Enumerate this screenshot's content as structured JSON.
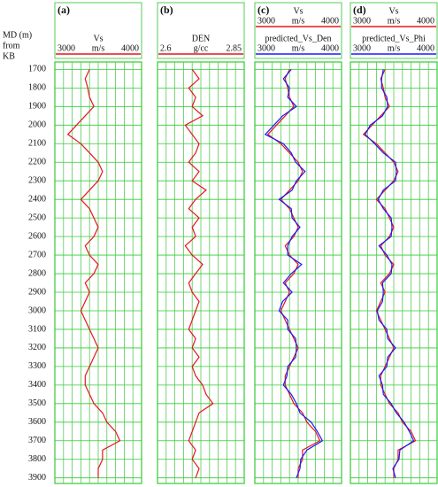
{
  "chart_data": {
    "type": "well-log",
    "ylabel": [
      "MD (m)",
      "from",
      "KB"
    ],
    "ylim": [
      1660,
      3930
    ],
    "yticks": [
      1700,
      1800,
      1900,
      2000,
      2100,
      2200,
      2300,
      2400,
      2500,
      2600,
      2700,
      2800,
      2900,
      3000,
      3100,
      3200,
      3300,
      3400,
      3500,
      3600,
      3700,
      3800,
      3900
    ],
    "grid": true,
    "y": [
      1700,
      1750,
      1800,
      1850,
      1900,
      1950,
      2000,
      2050,
      2100,
      2150,
      2200,
      2250,
      2300,
      2350,
      2400,
      2450,
      2500,
      2550,
      2600,
      2650,
      2700,
      2750,
      2800,
      2850,
      2900,
      2950,
      3000,
      3050,
      3100,
      3150,
      3200,
      3250,
      3300,
      3350,
      3400,
      3450,
      3500,
      3550,
      3600,
      3650,
      3700,
      3750,
      3800,
      3850,
      3900
    ],
    "tracks": [
      {
        "label": "(a)",
        "xgrid": [
          3100,
          3200,
          3300,
          3400,
          3500,
          3600,
          3700,
          3800,
          3900
        ],
        "curves": [
          {
            "name": "Vs",
            "unit": "m/s",
            "color": "#e8141e",
            "xlim": [
              3000,
              4000
            ],
            "xticks": [
              3000,
              4000
            ],
            "values": [
              3400,
              3350,
              3380,
              3400,
              3450,
              3350,
              3250,
              3150,
              3300,
              3400,
              3500,
              3550,
              3500,
              3400,
              3300,
              3400,
              3450,
              3500,
              3450,
              3350,
              3400,
              3500,
              3450,
              3350,
              3400,
              3350,
              3300,
              3350,
              3400,
              3450,
              3500,
              3450,
              3400,
              3350,
              3350,
              3400,
              3450,
              3550,
              3600,
              3700,
              3750,
              3550,
              3550,
              3500,
              3500
            ]
          }
        ]
      },
      {
        "label": "(b)",
        "xgrid": [
          2.625,
          2.65,
          2.675,
          2.7,
          2.725,
          2.75,
          2.775,
          2.8,
          2.825
        ],
        "curves": [
          {
            "name": "DEN",
            "unit": "g/cc",
            "color": "#e8141e",
            "xlim": [
              2.6,
              2.85
            ],
            "xticks": [
              2.6,
              2.85
            ],
            "values": [
              2.7,
              2.72,
              2.69,
              2.71,
              2.7,
              2.73,
              2.68,
              2.7,
              2.72,
              2.71,
              2.69,
              2.72,
              2.7,
              2.74,
              2.71,
              2.69,
              2.72,
              2.7,
              2.71,
              2.68,
              2.7,
              2.73,
              2.71,
              2.69,
              2.7,
              2.72,
              2.71,
              2.7,
              2.69,
              2.71,
              2.7,
              2.72,
              2.7,
              2.71,
              2.73,
              2.74,
              2.76,
              2.72,
              2.71,
              2.7,
              2.69,
              2.71,
              2.7,
              2.72,
              2.71
            ]
          }
        ]
      },
      {
        "label": "(c)",
        "xgrid": [
          3100,
          3200,
          3300,
          3400,
          3500,
          3600,
          3700,
          3800,
          3900
        ],
        "curves": [
          {
            "name": "Vs",
            "unit": "m/s",
            "color": "#e8141e",
            "xlim": [
              3000,
              4000
            ],
            "xticks": [
              3000,
              4000
            ],
            "values": [
              3400,
              3350,
              3380,
              3400,
              3450,
              3350,
              3250,
              3150,
              3300,
              3400,
              3500,
              3550,
              3500,
              3400,
              3300,
              3400,
              3450,
              3500,
              3450,
              3350,
              3400,
              3500,
              3450,
              3350,
              3400,
              3350,
              3300,
              3350,
              3400,
              3450,
              3500,
              3450,
              3400,
              3350,
              3350,
              3400,
              3450,
              3550,
              3600,
              3700,
              3750,
              3550,
              3550,
              3500,
              3500
            ]
          },
          {
            "name": "predicted_Vs_Den",
            "unit": "m/s",
            "color": "#1a1aff",
            "xlim": [
              3000,
              4000
            ],
            "xticks": [
              3000,
              4000
            ],
            "values": [
              3420,
              3330,
              3400,
              3380,
              3480,
              3320,
              3220,
              3120,
              3330,
              3420,
              3470,
              3580,
              3480,
              3430,
              3280,
              3420,
              3430,
              3520,
              3430,
              3380,
              3380,
              3540,
              3420,
              3330,
              3430,
              3320,
              3280,
              3380,
              3380,
              3470,
              3480,
              3470,
              3380,
              3370,
              3330,
              3420,
              3480,
              3520,
              3650,
              3720,
              3780,
              3600,
              3530,
              3520,
              3480
            ]
          }
        ]
      },
      {
        "label": "(d)",
        "xgrid": [
          3100,
          3200,
          3300,
          3400,
          3500,
          3600,
          3700,
          3800,
          3900
        ],
        "curves": [
          {
            "name": "Vs",
            "unit": "m/s",
            "color": "#e8141e",
            "xlim": [
              3000,
              4000
            ],
            "xticks": [
              3000,
              4000
            ],
            "values": [
              3400,
              3350,
              3380,
              3400,
              3450,
              3350,
              3250,
              3150,
              3300,
              3400,
              3500,
              3550,
              3500,
              3400,
              3300,
              3400,
              3450,
              3500,
              3450,
              3350,
              3400,
              3500,
              3450,
              3350,
              3400,
              3350,
              3300,
              3350,
              3400,
              3450,
              3500,
              3450,
              3400,
              3350,
              3350,
              3400,
              3450,
              3550,
              3600,
              3700,
              3750,
              3550,
              3550,
              3500,
              3500
            ]
          },
          {
            "name": "predicted_Vs_Phi",
            "unit": "m/s",
            "color": "#1a1aff",
            "xlim": [
              3000,
              4000
            ],
            "xticks": [
              3000,
              4000
            ],
            "values": [
              3380,
              3360,
              3360,
              3420,
              3430,
              3370,
              3230,
              3170,
              3280,
              3380,
              3520,
              3530,
              3520,
              3380,
              3320,
              3380,
              3470,
              3480,
              3470,
              3330,
              3420,
              3480,
              3470,
              3370,
              3380,
              3370,
              3310,
              3330,
              3420,
              3430,
              3520,
              3430,
              3420,
              3330,
              3370,
              3380,
              3470,
              3530,
              3620,
              3680,
              3730,
              3570,
              3560,
              3490,
              3520
            ]
          }
        ]
      }
    ]
  }
}
